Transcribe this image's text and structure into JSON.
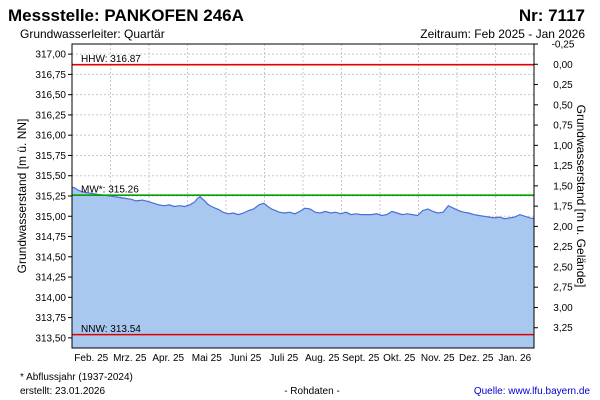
{
  "header": {
    "title": "Messstelle: PANKOFEN  246A",
    "number": "Nr: 7117",
    "aquifer": "Grundwasserleiter: Quartär",
    "period": "Zeitraum: Feb 2025 - Jan 2026"
  },
  "footer": {
    "note": "* Abflussjahr (1937-2024)",
    "created": "erstellt:  23.01.2026",
    "rawdata": "- Rohdaten -",
    "source": "Quelle: www.lfu.bayern.de"
  },
  "chart_data": {
    "type": "area",
    "ylabel": "Grundwasserstand [m ü. NN]",
    "y2label": "Grundwasserstand [m u. Gelände]",
    "ylim": [
      313.375,
      317.125
    ],
    "y2lim": [
      3.375,
      -0.375
    ],
    "y2_offset": 316.875,
    "grid": true,
    "colors": {
      "fill": "#a8c8f0",
      "line": "#4a6ed8",
      "hhw": "#e00000",
      "mw": "#00a000",
      "nnw": "#e00000",
      "grid": "#c8c8c8"
    },
    "yticks": [
      "313,50",
      "313,75",
      "314,00",
      "314,25",
      "314,50",
      "314,75",
      "315,00",
      "315,25",
      "315,50",
      "315,75",
      "316,00",
      "316,25",
      "316,50",
      "316,75",
      "317,00"
    ],
    "y2ticks": [
      "3,25",
      "3,00",
      "2,75",
      "2,50",
      "2,25",
      "2,00",
      "1,75",
      "1,50",
      "1,25",
      "1,00",
      "0,75",
      "0,50",
      "0,25",
      "0,00",
      "-0,25"
    ],
    "xticks": [
      "Feb. 25",
      "Mrz. 25",
      "Apr. 25",
      "Mai 25",
      "Juni 25",
      "Juli 25",
      "Aug. 25",
      "Sept. 25",
      "Okt. 25",
      "Nov. 25",
      "Dez. 25",
      "Jan. 26"
    ],
    "x_range_days": [
      0,
      361
    ],
    "reference_lines": [
      {
        "key": "hhw",
        "label": "HHW: 316.87",
        "value": 316.87
      },
      {
        "key": "mw",
        "label": "MW*: 315.26",
        "value": 315.26
      },
      {
        "key": "nnw",
        "label": "NNW: 313.54",
        "value": 313.54
      }
    ],
    "series": [
      {
        "x": [
          0,
          2,
          5,
          9,
          12,
          16,
          20,
          25,
          30,
          34,
          38,
          42,
          46,
          50,
          55,
          60,
          64,
          68,
          72,
          76,
          80,
          84,
          88,
          92,
          96,
          98,
          100,
          103,
          106,
          109,
          112,
          115,
          118,
          122,
          126,
          130,
          134,
          138,
          142,
          146,
          150,
          153,
          156,
          159,
          162,
          166,
          170,
          174,
          178,
          182,
          186,
          190,
          194,
          198,
          202,
          206,
          210,
          214,
          218,
          222,
          226,
          230,
          234,
          238,
          242,
          246,
          250,
          254,
          258,
          262,
          266,
          270,
          274,
          278,
          282,
          286,
          290,
          294,
          298,
          302,
          306,
          310,
          314,
          318,
          322,
          326,
          330,
          334,
          338,
          342,
          346,
          350,
          354,
          358,
          361
        ],
        "y": [
          315.36,
          315.35,
          315.32,
          315.3,
          315.29,
          315.28,
          315.27,
          315.26,
          315.25,
          315.24,
          315.23,
          315.22,
          315.21,
          315.19,
          315.2,
          315.18,
          315.16,
          315.14,
          315.13,
          315.14,
          315.12,
          315.13,
          315.12,
          315.14,
          315.18,
          315.22,
          315.24,
          315.2,
          315.15,
          315.12,
          315.1,
          315.08,
          315.05,
          315.03,
          315.04,
          315.02,
          315.04,
          315.07,
          315.09,
          315.14,
          315.16,
          315.12,
          315.09,
          315.07,
          315.05,
          315.04,
          315.05,
          315.03,
          315.06,
          315.1,
          315.09,
          315.05,
          315.04,
          315.06,
          315.04,
          315.05,
          315.03,
          315.05,
          315.02,
          315.03,
          315.02,
          315.02,
          315.02,
          315.03,
          315.01,
          315.02,
          315.06,
          315.04,
          315.02,
          315.03,
          315.02,
          315.01,
          315.07,
          315.09,
          315.06,
          315.04,
          315.05,
          315.13,
          315.1,
          315.07,
          315.05,
          315.04,
          315.02,
          315.01,
          315.0,
          314.99,
          314.98,
          314.99,
          314.97,
          314.98,
          314.99,
          315.02,
          315.0,
          314.98,
          314.97
        ]
      }
    ]
  }
}
